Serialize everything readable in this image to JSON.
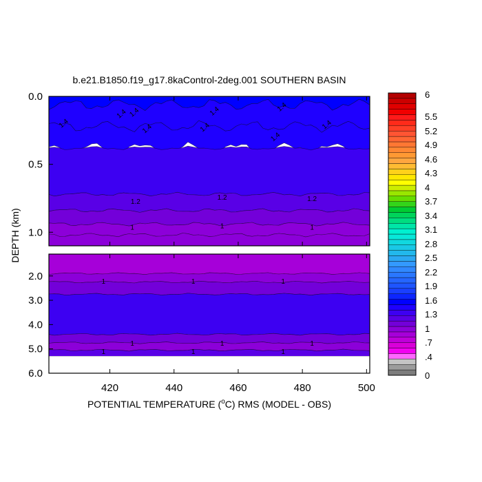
{
  "chart_data": {
    "type": "heatmap",
    "title": "b.e21.B1850.f19_g17.8kaControl-2deg.001 SOUTHERN BASIN",
    "xlabel": {
      "pre": "POTENTIAL TEMPERATURE (",
      "sup": "o",
      "post": "C) RMS (MODEL - OBS)"
    },
    "ylabel": "DEPTH (km)",
    "xlim": [
      401,
      501
    ],
    "x_ticks": [
      420,
      440,
      460,
      480,
      500
    ],
    "upper_panel": {
      "ylim_km": [
        0.0,
        1.1
      ],
      "y_ticks": [
        {
          "v": 0.0,
          "label": "0.0"
        },
        {
          "v": 0.5,
          "label": "0.5"
        },
        {
          "v": 1.0,
          "label": "1.0"
        }
      ],
      "bands": [
        {
          "from": 0.0,
          "to": 0.06,
          "level": 1.5
        },
        {
          "from": 0.06,
          "to": 0.22,
          "level": 1.45
        },
        {
          "from": 0.22,
          "to": 0.38,
          "level": 1.4
        },
        {
          "from": 0.38,
          "to": 0.72,
          "level": 1.3
        },
        {
          "from": 0.72,
          "to": 0.84,
          "level": 1.2
        },
        {
          "from": 0.84,
          "to": 0.94,
          "level": 1.1
        },
        {
          "from": 0.94,
          "to": 1.02,
          "level": 1.0
        },
        {
          "from": 1.02,
          "to": 1.1,
          "level": 0.95
        }
      ],
      "contour_labels": [
        {
          "x": 406,
          "y": 0.19,
          "text": "1.4"
        },
        {
          "x": 424,
          "y": 0.12,
          "text": "1.4"
        },
        {
          "x": 428,
          "y": 0.11,
          "text": "1.4"
        },
        {
          "x": 432,
          "y": 0.23,
          "text": "1.4"
        },
        {
          "x": 450,
          "y": 0.22,
          "text": "1.4"
        },
        {
          "x": 453,
          "y": 0.1,
          "text": "1.4"
        },
        {
          "x": 472,
          "y": 0.29,
          "text": "1.4"
        },
        {
          "x": 474,
          "y": 0.07,
          "text": "1.4"
        },
        {
          "x": 488,
          "y": 0.2,
          "text": "1.4"
        },
        {
          "x": 428,
          "y": 0.77,
          "text": "1.2"
        },
        {
          "x": 455,
          "y": 0.74,
          "text": "1.2"
        },
        {
          "x": 483,
          "y": 0.75,
          "text": "1.2"
        },
        {
          "x": 427,
          "y": 0.96,
          "text": "1"
        },
        {
          "x": 455,
          "y": 0.95,
          "text": "1"
        },
        {
          "x": 483,
          "y": 0.96,
          "text": "1"
        }
      ]
    },
    "lower_panel": {
      "ylim_km": [
        1.1,
        6.0
      ],
      "y_ticks": [
        {
          "v": 2.0,
          "label": "2.0"
        },
        {
          "v": 3.0,
          "label": "3.0"
        },
        {
          "v": 4.0,
          "label": "4.0"
        },
        {
          "v": 5.0,
          "label": "5.0"
        },
        {
          "v": 6.0,
          "label": "6.0"
        }
      ],
      "bands": [
        {
          "from": 1.1,
          "to": 1.9,
          "level": 0.85
        },
        {
          "from": 1.9,
          "to": 2.25,
          "level": 0.95
        },
        {
          "from": 2.25,
          "to": 2.75,
          "level": 1.05
        },
        {
          "from": 2.75,
          "to": 4.4,
          "level": 1.3
        },
        {
          "from": 4.4,
          "to": 4.75,
          "level": 1.1
        },
        {
          "from": 4.75,
          "to": 5.05,
          "level": 1.0
        },
        {
          "from": 5.05,
          "to": 5.3,
          "level": 1.2
        }
      ],
      "no_data_below_km": 5.3,
      "contour_labels": [
        {
          "x": 418,
          "y": 2.2,
          "text": "1"
        },
        {
          "x": 446,
          "y": 2.2,
          "text": "1"
        },
        {
          "x": 474,
          "y": 2.2,
          "text": "1"
        },
        {
          "x": 427,
          "y": 4.75,
          "text": "1"
        },
        {
          "x": 455,
          "y": 4.75,
          "text": "1"
        },
        {
          "x": 483,
          "y": 4.75,
          "text": "1"
        },
        {
          "x": 418,
          "y": 5.1,
          "text": "1"
        },
        {
          "x": 446,
          "y": 5.1,
          "text": "1"
        },
        {
          "x": 474,
          "y": 5.1,
          "text": "1"
        }
      ]
    },
    "colorbar": {
      "labels": [
        "0",
        ".4",
        ".7",
        "1",
        "1.3",
        "1.6",
        "1.9",
        "2.2",
        "2.5",
        "2.8",
        "3.1",
        "3.4",
        "3.7",
        "4",
        "4.3",
        "4.6",
        "4.9",
        "5.2",
        "5.5",
        "6"
      ],
      "colors": [
        "#7d7d7d",
        "#9c9c9c",
        "#c4c4c4",
        "#ff66ff",
        "#f200f2",
        "#d900d9",
        "#bf00d9",
        "#a600d9",
        "#8c00d9",
        "#7300d9",
        "#5900e6",
        "#3d00f2",
        "#1f00ff",
        "#0000ff",
        "#0d26ff",
        "#1a40ff",
        "#1f55ff",
        "#2566ff",
        "#2a77ff",
        "#3088ff",
        "#3399ff",
        "#2ba8f2",
        "#22b8ec",
        "#1ac8e6",
        "#11d8df",
        "#08e8d9",
        "#00f0d0",
        "#00e6a8",
        "#00dd80",
        "#00d45a",
        "#00cc33",
        "#33d41a",
        "#66dd00",
        "#99e600",
        "#ccee00",
        "#ffff00",
        "#ffe800",
        "#ffd11a",
        "#ffbb33",
        "#ffa640",
        "#ff9933",
        "#ff8833",
        "#ff7733",
        "#ff6633",
        "#ff5533",
        "#ff4026",
        "#ff2b1a",
        "#ff1a1a",
        "#f20000",
        "#e00000",
        "#cc0000",
        "#b30000"
      ]
    }
  }
}
